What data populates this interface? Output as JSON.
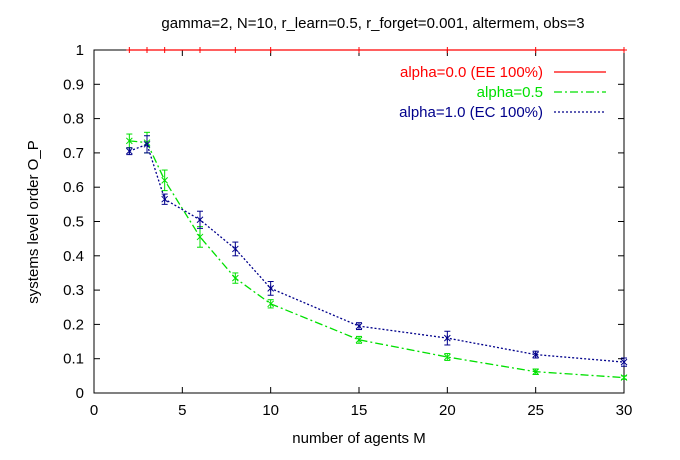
{
  "chart_data": {
    "type": "line",
    "title": "gamma=2, N=10, r_learn=0.5, r_forget=0.001, altermem, obs=3",
    "xlabel": "number of agents M",
    "ylabel": "systems level order O_P",
    "xlim": [
      0,
      30
    ],
    "ylim": [
      0,
      1
    ],
    "xticks": [
      "0",
      "5",
      "10",
      "15",
      "20",
      "25",
      "30"
    ],
    "yticks": [
      "0",
      "0.1",
      "0.2",
      "0.3",
      "0.4",
      "0.5",
      "0.6",
      "0.7",
      "0.8",
      "0.9",
      "1"
    ],
    "grid": false,
    "legend_position": "top-right",
    "series": [
      {
        "name": "alpha=0.0 (EE 100%)",
        "color": "#ff0000",
        "dash": "solid",
        "x": [
          2,
          3,
          4,
          6,
          8,
          10,
          15,
          20,
          25,
          30
        ],
        "y": [
          1,
          1,
          1,
          1,
          1,
          1,
          1,
          1,
          1,
          1
        ],
        "err": [
          0,
          0,
          0,
          0,
          0,
          0,
          0,
          0,
          0,
          0
        ]
      },
      {
        "name": "alpha=0.5",
        "color": "#00e000",
        "dash": "dashdot",
        "x": [
          2,
          3,
          4,
          6,
          8,
          10,
          15,
          20,
          25,
          30
        ],
        "y": [
          0.735,
          0.73,
          0.62,
          0.455,
          0.335,
          0.26,
          0.155,
          0.105,
          0.062,
          0.045
        ],
        "err": [
          0.02,
          0.03,
          0.03,
          0.03,
          0.015,
          0.012,
          0.01,
          0.01,
          0.008,
          0.005
        ]
      },
      {
        "name": "alpha=1.0 (EC 100%)",
        "color": "#00008b",
        "dash": "dotted",
        "x": [
          2,
          3,
          4,
          6,
          8,
          10,
          15,
          20,
          25,
          30
        ],
        "y": [
          0.705,
          0.725,
          0.565,
          0.505,
          0.42,
          0.305,
          0.195,
          0.16,
          0.112,
          0.09
        ],
        "err": [
          0.01,
          0.025,
          0.015,
          0.025,
          0.02,
          0.02,
          0.01,
          0.02,
          0.01,
          0.012
        ]
      }
    ]
  }
}
